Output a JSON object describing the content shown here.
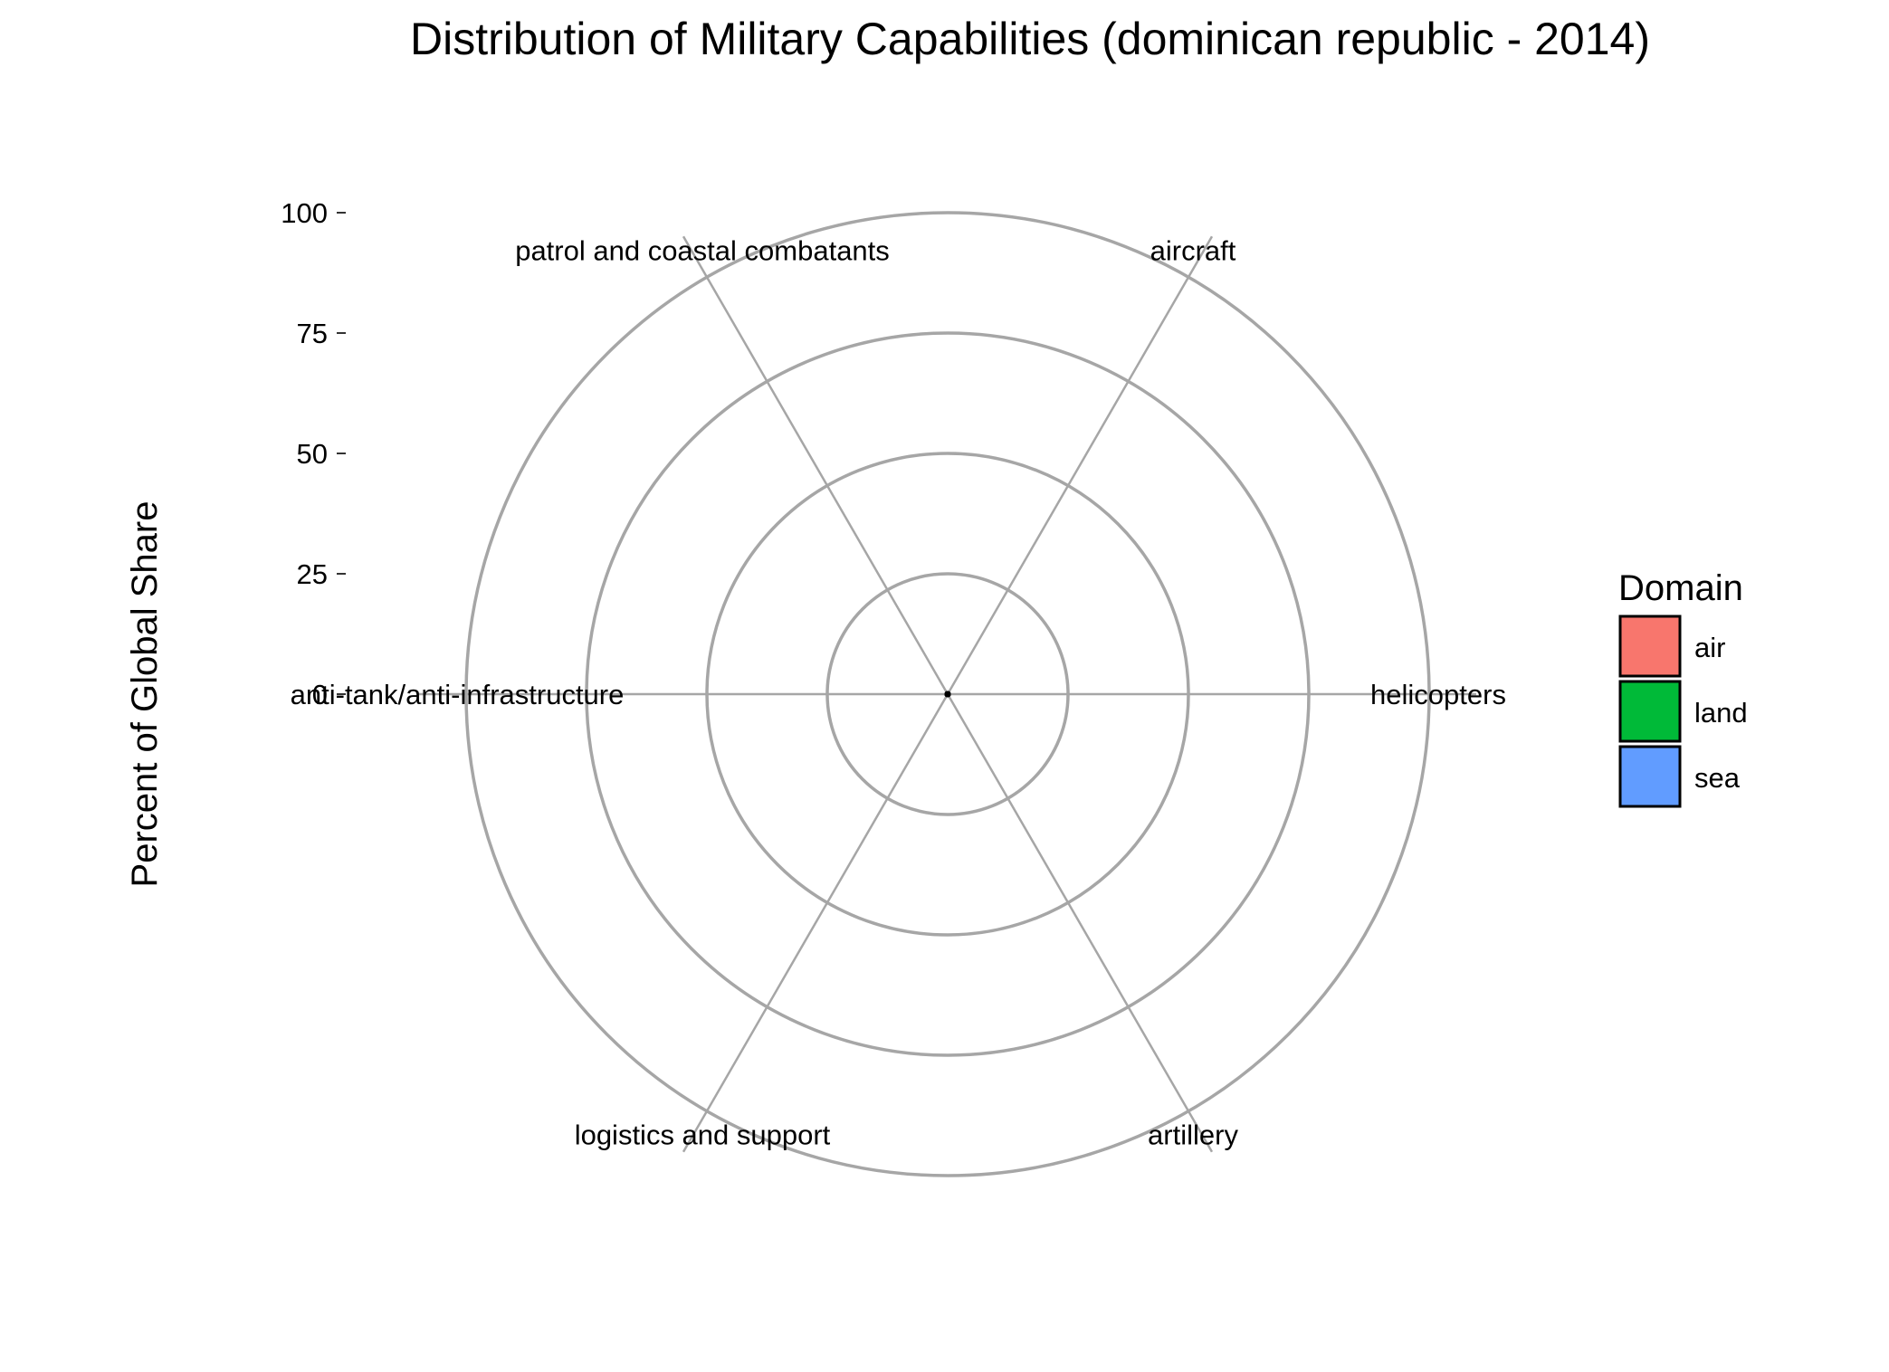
{
  "chart_data": {
    "type": "radar",
    "title": "Distribution of Military Capabilities (dominican republic - 2014)",
    "xlabel": "",
    "ylabel": "Percent of Global Share",
    "ylim": [
      0,
      100
    ],
    "radial_ticks": [
      0,
      25,
      50,
      75,
      100
    ],
    "grid": true,
    "categories": [
      "helicopters",
      "aircraft",
      "patrol and coastal combatants",
      "anti-tank/anti-infrastructure",
      "logistics and support",
      "artillery"
    ],
    "series": [
      {
        "values": [
          0,
          0,
          0,
          0,
          0,
          0
        ]
      }
    ],
    "legend": {
      "title": "Domain",
      "placement": "right",
      "items": [
        {
          "label": "air",
          "color": "#F8766D"
        },
        {
          "label": "land",
          "color": "#00BA38"
        },
        {
          "label": "sea",
          "color": "#619CFF"
        }
      ]
    },
    "colors": {
      "grid": "#a6a6a6",
      "text": "#000000"
    }
  }
}
